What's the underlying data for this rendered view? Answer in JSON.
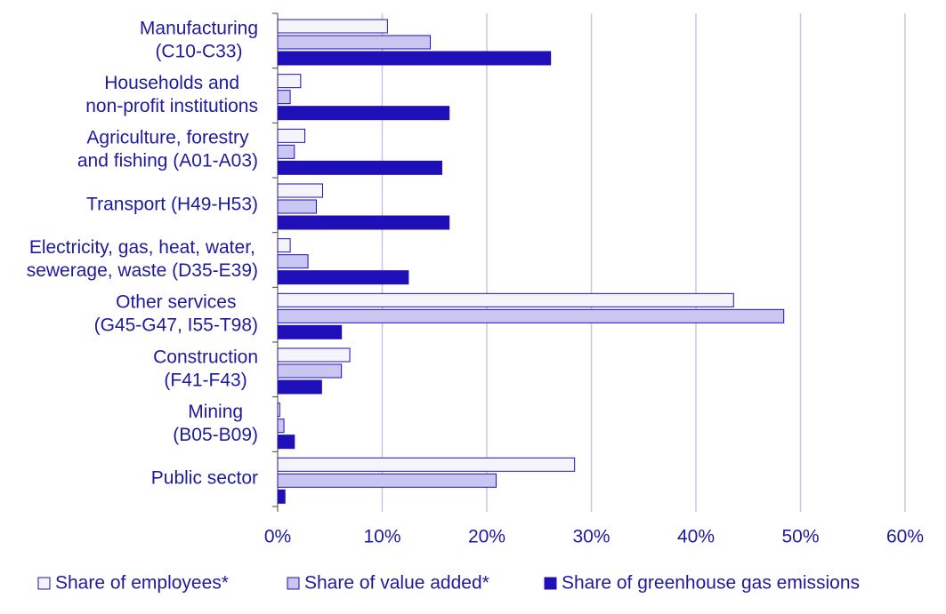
{
  "chart_data": {
    "type": "bar",
    "orientation": "horizontal",
    "categories": [
      [
        "Manufacturing",
        "(C10-C33)"
      ],
      [
        "Households and",
        "non-profit institutions"
      ],
      [
        "Agriculture, forestry",
        "and fishing (A01-A03)"
      ],
      [
        "Transport (H49-H53)"
      ],
      [
        "Electricity, gas, heat, water,",
        "sewerage, waste (D35-E39)"
      ],
      [
        "Other services",
        "(G45-G47, I55-T98)"
      ],
      [
        "Construction",
        "(F41-F43)"
      ],
      [
        "Mining",
        "(B05-B09)"
      ],
      [
        "Public sector"
      ]
    ],
    "series": [
      {
        "name": "Share of employees*",
        "color": "#f4f4fc",
        "values": [
          10.5,
          2.2,
          2.6,
          4.3,
          1.2,
          43.6,
          6.9,
          0.2,
          28.4
        ]
      },
      {
        "name": "Share of value added*",
        "color": "#c9c6f2",
        "values": [
          14.6,
          1.2,
          1.6,
          3.7,
          2.9,
          48.4,
          6.1,
          0.6,
          20.9
        ]
      },
      {
        "name": "Share of greenhouse gas emissions",
        "color": "#1e0fb8",
        "values": [
          26.1,
          16.4,
          15.7,
          16.4,
          12.5,
          6.1,
          4.2,
          1.6,
          0.7
        ]
      }
    ],
    "xlim": [
      0,
      60
    ],
    "xticks": [
      {
        "value": 0,
        "label": "0%"
      },
      {
        "value": 10,
        "label": "10%"
      },
      {
        "value": 20,
        "label": "20%"
      },
      {
        "value": 30,
        "label": "30%"
      },
      {
        "value": 40,
        "label": "40%"
      },
      {
        "value": 50,
        "label": "50%"
      },
      {
        "value": 60,
        "label": "60%"
      }
    ],
    "grid": true,
    "legend": "bottom"
  }
}
